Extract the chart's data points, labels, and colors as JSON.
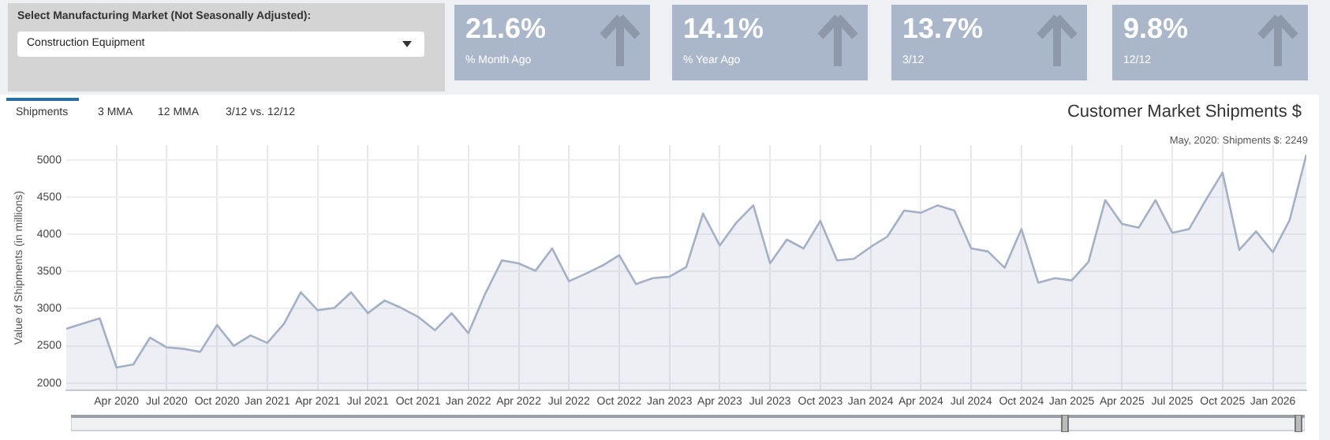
{
  "chart_data": {
    "type": "area",
    "title": "Customer Market Shipments $",
    "ylabel": "Value of Shipments (in millions)",
    "annotations": [
      "Select Manufacturing Market (Not Seasonally Adjusted):",
      "Construction Equipment",
      "21.6%",
      "% Month Ago",
      "14.1%",
      "% Year Ago",
      "13.7%",
      "3/12",
      "9.8%",
      "12/12",
      "Shipments",
      "3 MMA",
      "12 MMA",
      "3/12 vs. 12/12",
      "May, 2020: Shipments $: 2249"
    ],
    "x": [
      "2020-01",
      "2020-02",
      "2020-03",
      "2020-04",
      "2020-05",
      "2020-06",
      "2020-07",
      "2020-08",
      "2020-09",
      "2020-10",
      "2020-11",
      "2020-12",
      "2021-01",
      "2021-02",
      "2021-03",
      "2021-04",
      "2021-05",
      "2021-06",
      "2021-07",
      "2021-08",
      "2021-09",
      "2021-10",
      "2021-11",
      "2021-12",
      "2022-01",
      "2022-02",
      "2022-03",
      "2022-04",
      "2022-05",
      "2022-06",
      "2022-07",
      "2022-08",
      "2022-09",
      "2022-10",
      "2022-11",
      "2022-12",
      "2023-01",
      "2023-02",
      "2023-03",
      "2023-04",
      "2023-05",
      "2023-06",
      "2023-07",
      "2023-08",
      "2023-09",
      "2023-10",
      "2023-11",
      "2023-12",
      "2024-01",
      "2024-02",
      "2024-03",
      "2024-04",
      "2024-05",
      "2024-06",
      "2024-07",
      "2024-08",
      "2024-09",
      "2024-10",
      "2024-11",
      "2024-12",
      "2025-01",
      "2025-02",
      "2025-03",
      "2025-04",
      "2025-05",
      "2025-06",
      "2025-07",
      "2025-08",
      "2025-09",
      "2025-10",
      "2025-11",
      "2025-12",
      "2026-01",
      "2026-02",
      "2026-03"
    ],
    "series": [
      {
        "color": "#a3b0c6",
        "values": [
          2730,
          2800,
          2870,
          2210,
          2249,
          2610,
          2480,
          2460,
          2420,
          2780,
          2500,
          2640,
          2540,
          2800,
          3220,
          2980,
          3010,
          3220,
          2940,
          3110,
          3010,
          2890,
          2710,
          2940,
          2670,
          3200,
          3650,
          3610,
          3510,
          3810,
          3370,
          3470,
          3580,
          3720,
          3330,
          3410,
          3430,
          3560,
          4280,
          3850,
          4160,
          4390,
          3610,
          3930,
          3810,
          4180,
          3650,
          3670,
          3830,
          3970,
          4320,
          4290,
          4390,
          4320,
          3810,
          3770,
          3550,
          4070,
          3350,
          3410,
          3380,
          3630,
          4460,
          4140,
          4090,
          4460,
          4020,
          4070,
          4460,
          4830,
          3790,
          4040,
          3760,
          4190,
          5070
        ]
      }
    ],
    "xlim": [
      "2020-01",
      "2026-03"
    ],
    "xticks": [
      {
        "value": "2020-04",
        "label": "Apr 2020"
      },
      {
        "value": "2020-07",
        "label": "Jul 2020"
      },
      {
        "value": "2020-10",
        "label": "Oct 2020"
      },
      {
        "value": "2021-01",
        "label": "Jan 2021"
      },
      {
        "value": "2021-04",
        "label": "Apr 2021"
      },
      {
        "value": "2021-07",
        "label": "Jul 2021"
      },
      {
        "value": "2021-10",
        "label": "Oct 2021"
      },
      {
        "value": "2022-01",
        "label": "Jan 2022"
      },
      {
        "value": "2022-04",
        "label": "Apr 2022"
      },
      {
        "value": "2022-07",
        "label": "Jul 2022"
      },
      {
        "value": "2022-10",
        "label": "Oct 2022"
      },
      {
        "value": "2023-01",
        "label": "Jan 2023"
      },
      {
        "value": "2023-04",
        "label": "Apr 2023"
      },
      {
        "value": "2023-07",
        "label": "Jul 2023"
      },
      {
        "value": "2023-10",
        "label": "Oct 2023"
      },
      {
        "value": "2024-01",
        "label": "Jan 2024"
      },
      {
        "value": "2024-04",
        "label": "Apr 2024"
      },
      {
        "value": "2024-07",
        "label": "Jul 2024"
      },
      {
        "value": "2024-10",
        "label": "Oct 2024"
      },
      {
        "value": "2025-01",
        "label": "Jan 2025"
      },
      {
        "value": "2025-04",
        "label": "Apr 2025"
      },
      {
        "value": "2025-07",
        "label": "Jul 2025"
      },
      {
        "value": "2025-10",
        "label": "Oct 2025"
      },
      {
        "value": "2026-01",
        "label": "Jan 2026"
      }
    ],
    "ylim": [
      1900,
      5200
    ],
    "yticks": [
      2000,
      2500,
      3000,
      3500,
      4000,
      4500,
      5000
    ],
    "grid": true,
    "legend": false,
    "marker": "none",
    "line_style": "solid"
  }
}
